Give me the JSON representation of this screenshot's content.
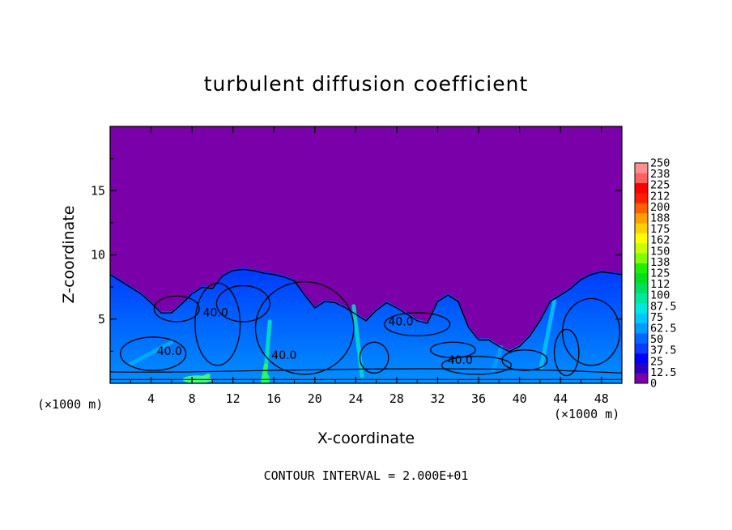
{
  "chart_data": {
    "type": "heatmap",
    "title": "turbulent diffusion coefficient",
    "xlabel": "X-coordinate",
    "ylabel": "Z-coordinate",
    "x_unit_left": "(×1000 m)",
    "x_unit_right": "(×1000 m)",
    "xlim": [
      0,
      50
    ],
    "ylim": [
      0,
      20
    ],
    "x_ticks": [
      4,
      8,
      12,
      16,
      20,
      24,
      28,
      32,
      36,
      40,
      44,
      48
    ],
    "y_ticks": [
      5,
      10,
      15
    ],
    "contour_interval_text": "CONTOUR INTERVAL = 2.000E+01",
    "contour_labels": [
      {
        "text": "40.0",
        "x": 10.3,
        "z": 5.2
      },
      {
        "text": "40.0",
        "x": 5.8,
        "z": 2.2
      },
      {
        "text": "40.0",
        "x": 17.0,
        "z": 1.9
      },
      {
        "text": "40.0",
        "x": 28.4,
        "z": 4.5
      },
      {
        "text": "40.0",
        "x": 34.2,
        "z": 1.5
      }
    ],
    "layer_top_z": [
      8.6,
      8.1,
      7.6,
      7.1,
      6.4,
      5.6,
      5.6,
      6.3,
      7.1,
      7.6,
      7.5,
      8.5,
      8.9,
      9.0,
      8.9,
      8.7,
      8.6,
      8.4,
      8.1,
      7.0,
      6.0,
      6.5,
      6.4,
      6.0,
      5.5,
      5.0,
      5.8,
      6.4,
      6.0,
      5.5,
      5.0,
      4.8,
      6.5,
      7.0,
      6.5,
      4.5,
      3.5,
      3.5,
      3.0,
      2.6,
      3.0,
      3.8,
      5.0,
      6.5,
      7.0,
      7.5,
      8.2,
      8.6,
      8.8,
      8.7,
      8.6
    ],
    "colorbar": {
      "levels": [
        "0",
        "12.5",
        "25",
        "37.5",
        "50",
        "62.5",
        "75",
        "87.5",
        "100",
        "112",
        "125",
        "138",
        "150",
        "162",
        "175",
        "188",
        "200",
        "212",
        "225",
        "238",
        "250"
      ],
      "colors": [
        "#7a00a9",
        "#2a00c8",
        "#0000ff",
        "#0a3cff",
        "#0068ff",
        "#009cff",
        "#00c8ff",
        "#00e8e0",
        "#00e8a0",
        "#00e060",
        "#00e020",
        "#20f000",
        "#80ff00",
        "#c8ff00",
        "#ffff00",
        "#ffd000",
        "#ffa000",
        "#ff6000",
        "#ff2000",
        "#ff0000",
        "#ff6060",
        "#ff9090"
      ]
    }
  }
}
